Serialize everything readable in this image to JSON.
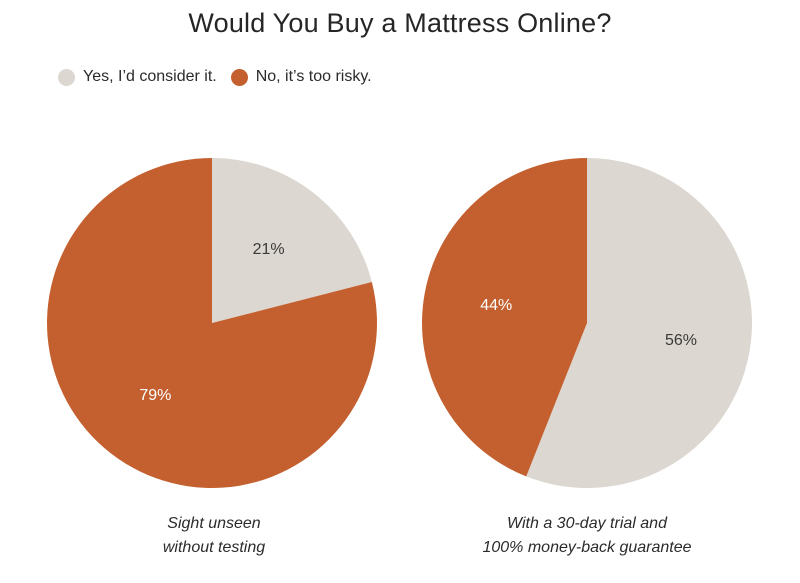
{
  "colors": {
    "yes": "#DCD7D0",
    "no": "#C4602F",
    "label_dark": "#3a3a3a",
    "label_light": "#ffffff"
  },
  "chart_data": [
    {
      "type": "pie",
      "title": "Would You Buy a Mattress Online?",
      "caption": "Sight unseen\nwithout testing",
      "slices": [
        {
          "name": "Yes, I’d consider it.",
          "value": 21,
          "label": "21%"
        },
        {
          "name": "No, it’s too risky.",
          "value": 79,
          "label": "79%"
        }
      ]
    },
    {
      "type": "pie",
      "title": "Would You Buy a Mattress Online?",
      "caption": "With a 30-day trial and\n100% money-back guarantee",
      "slices": [
        {
          "name": "Yes, I’d consider it.",
          "value": 56,
          "label": "56%"
        },
        {
          "name": "No, it’s too risky.",
          "value": 44,
          "label": "44%"
        }
      ]
    }
  ],
  "header": {
    "title": "Would You Buy a Mattress Online?"
  },
  "legend": {
    "items": [
      {
        "label": "Yes, I’d consider it.",
        "color": "#DCD7D0"
      },
      {
        "label": "No, it’s too risky.",
        "color": "#C4602F"
      }
    ]
  }
}
